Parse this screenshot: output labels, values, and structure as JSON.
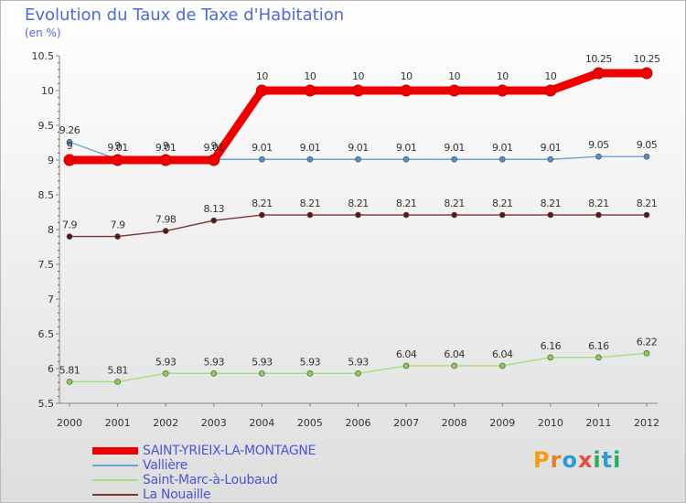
{
  "chart_data": {
    "type": "line",
    "title": "Evolution du Taux de Taxe d'Habitation",
    "subtitle": "(en %)",
    "xlabel": "",
    "ylabel": "",
    "categories": [
      "2000",
      "2001",
      "2002",
      "2003",
      "2004",
      "2005",
      "2006",
      "2007",
      "2008",
      "2009",
      "2010",
      "2011",
      "2012"
    ],
    "ylim": [
      5.5,
      10.5
    ],
    "yticks": [
      "5.5",
      "6",
      "6.5",
      "7",
      "7.5",
      "8",
      "8.5",
      "9",
      "9.5",
      "10",
      "10.5"
    ],
    "grid": false,
    "legend_position": "bottom-left",
    "series": [
      {
        "name": "SAINT-YRIEIX-LA-MONTAGNE",
        "color": "#ee0000",
        "marker_color": "#ee0000",
        "values": [
          9,
          9,
          9,
          9,
          10,
          10,
          10,
          10,
          10,
          10,
          10,
          10.25,
          10.25
        ],
        "labels": [
          "9",
          "9",
          "9",
          "9",
          "10",
          "10",
          "10",
          "10",
          "10",
          "10",
          "10",
          "10.25",
          "10.25"
        ]
      },
      {
        "name": "Vallière",
        "color": "#6fa2cf",
        "marker_color": "#4f8fd0",
        "values": [
          9.26,
          9.01,
          9.01,
          9.01,
          9.01,
          9.01,
          9.01,
          9.01,
          9.01,
          9.01,
          9.01,
          9.05,
          9.05
        ],
        "labels": [
          "9.26",
          "9.01",
          "9.01",
          "9.01",
          "9.01",
          "9.01",
          "9.01",
          "9.01",
          "9.01",
          "9.01",
          "9.01",
          "9.05",
          "9.05"
        ]
      },
      {
        "name": "Saint-Marc-à-Loubaud",
        "color": "#a8dc7c",
        "marker_color": "#8cd04a",
        "values": [
          5.81,
          5.81,
          5.93,
          5.93,
          5.93,
          5.93,
          5.93,
          6.04,
          6.04,
          6.04,
          6.16,
          6.16,
          6.22
        ],
        "labels": [
          "5.81",
          "5.81",
          "5.93",
          "5.93",
          "5.93",
          "5.93",
          "5.93",
          "6.04",
          "6.04",
          "6.04",
          "6.16",
          "6.16",
          "6.22"
        ]
      },
      {
        "name": "La Nouaille",
        "color": "#7b3333",
        "marker_color": "#5c1414",
        "values": [
          7.9,
          7.9,
          7.98,
          8.13,
          8.21,
          8.21,
          8.21,
          8.21,
          8.21,
          8.21,
          8.21,
          8.21,
          8.21
        ],
        "labels": [
          "7.9",
          "7.9",
          "7.98",
          "8.13",
          "8.21",
          "8.21",
          "8.21",
          "8.21",
          "8.21",
          "8.21",
          "8.21",
          "8.21",
          "8.21"
        ]
      }
    ]
  },
  "logo": {
    "letters": [
      "P",
      "r",
      "o",
      "x",
      "i",
      "t",
      "i"
    ]
  }
}
